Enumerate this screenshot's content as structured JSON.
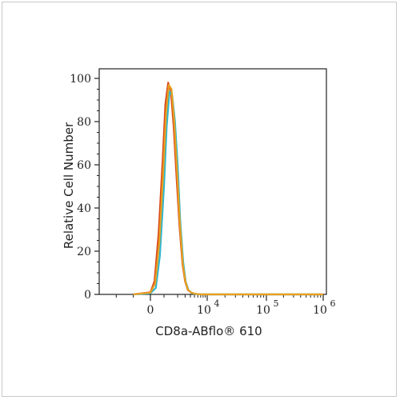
{
  "chart_data": {
    "type": "line",
    "title": "",
    "xlabel": "CD8a-ABflo® 610",
    "ylabel": "Relative Cell Number",
    "x_scale": "biexponential",
    "xlim": [
      -3000,
      1000000
    ],
    "ylim": [
      0,
      100
    ],
    "grid": false,
    "x_ticks": [
      {
        "value": 0,
        "label": "0",
        "exp": ""
      },
      {
        "value": 10000,
        "label": "10",
        "exp": "4"
      },
      {
        "value": 100000,
        "label": "10",
        "exp": "5"
      },
      {
        "value": 1000000,
        "label": "10",
        "exp": "6"
      }
    ],
    "y_ticks": [
      0,
      20,
      40,
      60,
      80,
      100
    ],
    "series": [
      {
        "color": "#d94a1e",
        "x": [
          -1000,
          0,
          300,
          600,
          900,
          1100,
          1300,
          1500,
          1700,
          1900,
          2200,
          2600,
          3000,
          3500,
          4200,
          5000,
          7000,
          10000,
          100000,
          1000000
        ],
        "y": [
          0,
          1,
          6,
          28,
          62,
          88,
          98,
          94,
          78,
          56,
          32,
          14,
          6,
          2,
          0.8,
          0.3,
          0,
          0,
          0,
          0
        ]
      },
      {
        "color": "#2fb6cf",
        "x": [
          -1000,
          0,
          400,
          700,
          1000,
          1200,
          1400,
          1600,
          1800,
          2000,
          2300,
          2700,
          3100,
          3600,
          4300,
          5200,
          7000,
          10000,
          100000,
          1000000
        ],
        "y": [
          0,
          0.5,
          3,
          18,
          50,
          78,
          94,
          92,
          80,
          60,
          34,
          15,
          6,
          2,
          0.7,
          0.2,
          0,
          0,
          0,
          0
        ]
      },
      {
        "color": "#e8a020",
        "x": [
          -1000,
          0,
          350,
          650,
          950,
          1150,
          1350,
          1550,
          1750,
          1950,
          2250,
          2650,
          3050,
          3550,
          4250,
          5100,
          7000,
          10000,
          100000,
          1000000
        ],
        "y": [
          0,
          0.8,
          5,
          24,
          58,
          84,
          97,
          95,
          80,
          58,
          33,
          14,
          6,
          2,
          0.8,
          0.3,
          0,
          0,
          0,
          0
        ]
      }
    ]
  }
}
